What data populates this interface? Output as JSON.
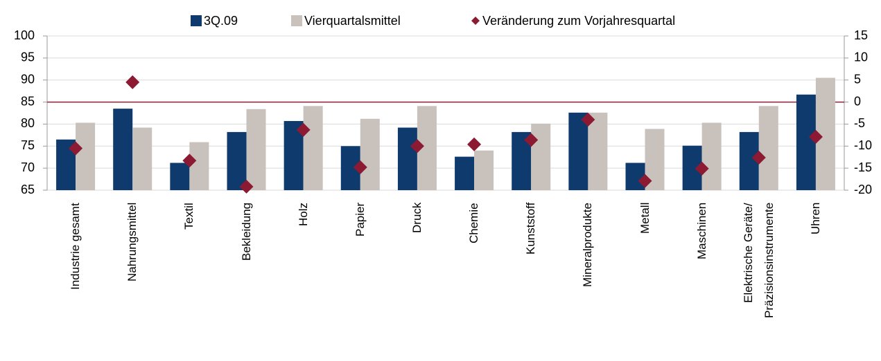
{
  "chart_data": {
    "type": "bar",
    "categories": [
      "Industrie gesamt",
      "Nahrungsmittel",
      "Textil",
      "Bekleidung",
      "Holz",
      "Papier",
      "Druck",
      "Chemie",
      "Kunststoff",
      "Mineralprodukte",
      "Metall",
      "Maschinen",
      "Elektrische Geräte/\nPräzisionsinstrumente",
      "Uhren"
    ],
    "series": [
      {
        "name": "3Q.09",
        "color": "#0f3a6e",
        "type": "bar",
        "values": [
          76.5,
          83.5,
          71.2,
          78.2,
          80.7,
          75,
          79.2,
          72.6,
          78.2,
          82.6,
          71.2,
          75.1,
          78.2,
          86.7
        ]
      },
      {
        "name": "Vierquartalsmittel",
        "color": "#c9c1bc",
        "type": "bar",
        "values": [
          80.3,
          79.2,
          75.9,
          83.4,
          84.1,
          81.2,
          84.1,
          74,
          80.1,
          82.6,
          78.9,
          80.3,
          84.1,
          90.5
        ]
      },
      {
        "name": "Veränderung zum Vorjahresquartal",
        "color": "#8b1a32",
        "type": "scatter",
        "axis": "y2",
        "values": [
          -10.5,
          4.5,
          -13.3,
          -19.2,
          -6.3,
          -14.8,
          -10,
          -9.6,
          -8.6,
          -4,
          -17.9,
          -15.1,
          -12.6,
          -7.9
        ]
      }
    ],
    "ylim": [
      65,
      100
    ],
    "yticks": [
      65,
      70,
      75,
      80,
      85,
      90,
      95,
      100
    ],
    "y2lim": [
      -20,
      15
    ],
    "y2ticks": [
      -20,
      -15,
      -10,
      -5,
      0,
      5,
      10,
      15
    ],
    "reference_line": {
      "axis": "y2",
      "value": 0,
      "color": "#9b1c31"
    },
    "grid": true,
    "legend": "top"
  }
}
